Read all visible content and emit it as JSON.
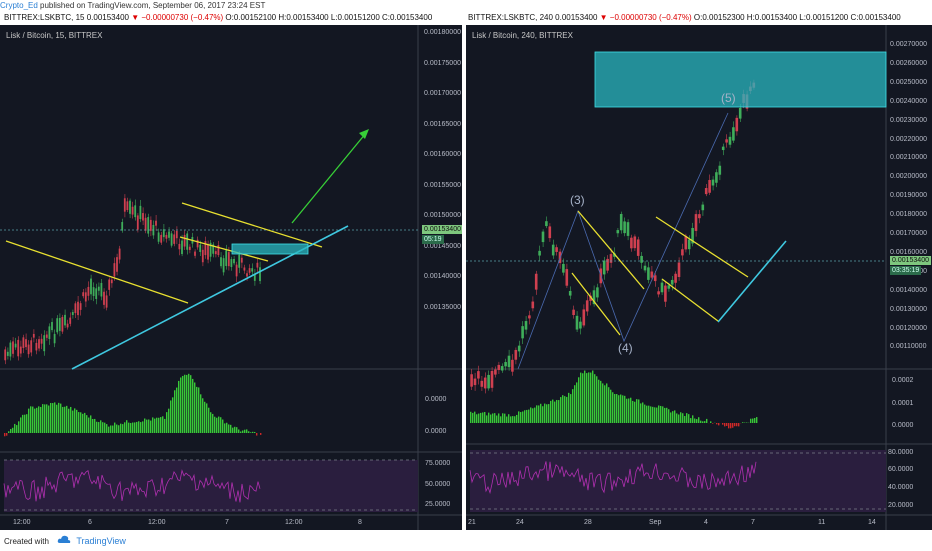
{
  "top": {
    "user": "Crypto_Ed",
    "text": " published on TradingView.com, September 06, 2017 23:24 EST"
  },
  "left": {
    "header": {
      "symbol": "BITTREX:LSKBTC, 15",
      "last": "0.00153400",
      "change": "▼ −0.00000730 (−0.47%)",
      "ohlc": "O:0.00152100 H:0.00153400 L:0.00151200 C:0.00153400"
    },
    "title": "Lisk / Bitcoin, 15, BITTREX",
    "yaxis": [
      "0.00180000",
      "0.00175000",
      "0.00170000",
      "0.00165000",
      "0.00160000",
      "0.00155000",
      "0.00150000",
      "0.00145000",
      "0.00140000",
      "0.00135000"
    ],
    "price_tag": "0.00153400",
    "countdown": "05:19",
    "osc_axis": [
      "0.0000",
      "0.0000"
    ],
    "rsi_axis": [
      "75.0000",
      "50.0000",
      "25.0000"
    ],
    "xaxis": [
      "12:00",
      "6",
      "12:00",
      "7",
      "12:00",
      "8"
    ]
  },
  "right": {
    "header": {
      "symbol": "BITTREX:LSKBTC, 240",
      "last": "0.00153400",
      "change": "▼ −0.00000730 (−0.47%)",
      "ohlc": "O:0.00152300 H:0.00153400 L:0.00151200 C:0.00153400"
    },
    "title": "Lisk / Bitcoin, 240, BITTREX",
    "yaxis": [
      "0.00270000",
      "0.00260000",
      "0.00250000",
      "0.00240000",
      "0.00230000",
      "0.00220000",
      "0.00210000",
      "0.00200000",
      "0.00190000",
      "0.00180000",
      "0.00170000",
      "0.00160000",
      "0.00150000",
      "0.00140000",
      "0.00130000",
      "0.00120000",
      "0.00110000"
    ],
    "price_tag": "0.00153400",
    "countdown": "03:35:19",
    "waves": [
      "(3)",
      "(4)",
      "(5)"
    ],
    "osc_axis": [
      "0.0002",
      "0.0001",
      "0.0000"
    ],
    "rsi_axis": [
      "80.0000",
      "60.0000",
      "40.0000",
      "20.0000"
    ],
    "xaxis": [
      "21",
      "24",
      "28",
      "Sep",
      "4",
      "7",
      "11",
      "14"
    ]
  },
  "footer": {
    "created": "Created with",
    "brand": "TradingView"
  },
  "colors": {
    "bg": "#131722",
    "yellow": "#e8e030",
    "cyan": "#3fc8e0",
    "green": "#37d037",
    "up": "#3fae5a",
    "down": "#d04050",
    "rsi": "#b030b0"
  }
}
